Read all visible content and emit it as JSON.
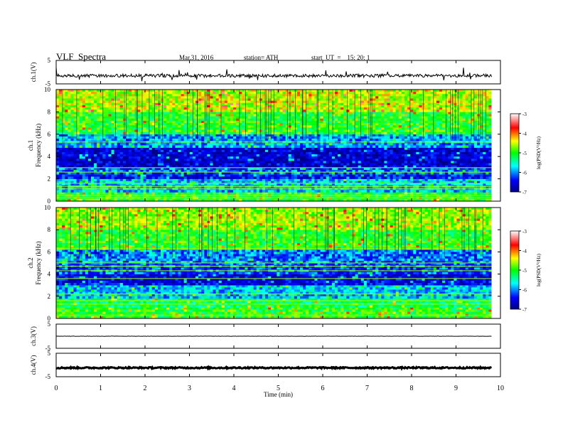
{
  "header": {
    "title": "VLF  Spectra",
    "date": "Mar.31, 2016",
    "station": "station= ATH",
    "start": "start  UT  =    15: 20: 1"
  },
  "chart_data": {
    "type": "spectrogram",
    "xlabel": "Time  (min)",
    "xlim": [
      0,
      10
    ],
    "xticks": [
      "0",
      "1",
      "2",
      "3",
      "4",
      "5",
      "6",
      "7",
      "8",
      "9",
      "10"
    ],
    "data_end_min": 9.8,
    "panels": [
      {
        "id": "ch1-waveform",
        "kind": "waveform",
        "ylabel": "ch.1(V)",
        "ylim": [
          -5,
          5
        ],
        "yticks": [
          "5",
          "-5"
        ],
        "baseline": -1.5,
        "noise": 0.7
      },
      {
        "id": "ch1-spec",
        "kind": "spectrogram",
        "ylabel": [
          "ch.1",
          "Frequency  (kHz)"
        ],
        "ylim": [
          0,
          10
        ],
        "yticks": [
          "0",
          "2",
          "4",
          "6",
          "8",
          "10"
        ],
        "bands": [
          {
            "f0": 0.0,
            "f1": 0.8,
            "level": -5.0
          },
          {
            "f0": 0.8,
            "f1": 2.0,
            "level": -5.8
          },
          {
            "f0": 2.0,
            "f1": 2.4,
            "level": -6.4
          },
          {
            "f0": 2.4,
            "f1": 3.0,
            "level": -6.1
          },
          {
            "f0": 3.0,
            "f1": 4.8,
            "level": -6.6
          },
          {
            "f0": 4.8,
            "f1": 6.0,
            "level": -5.9
          },
          {
            "f0": 6.0,
            "f1": 8.0,
            "level": -5.0
          },
          {
            "f0": 8.0,
            "f1": 10.0,
            "level": -4.5
          }
        ],
        "lines_khz": [
          0.3,
          0.5,
          1.1,
          1.3,
          1.6,
          2.6,
          3.0,
          5.3
        ]
      },
      {
        "id": "ch2-spec",
        "kind": "spectrogram",
        "ylabel": [
          "ch.2",
          "Frequency  (kHz)"
        ],
        "ylim": [
          0,
          10
        ],
        "yticks": [
          "0",
          "2",
          "4",
          "6",
          "8",
          "10"
        ],
        "bands": [
          {
            "f0": 0.0,
            "f1": 1.0,
            "level": -5.0
          },
          {
            "f0": 1.0,
            "f1": 1.8,
            "level": -5.2
          },
          {
            "f0": 1.8,
            "f1": 3.0,
            "level": -5.8
          },
          {
            "f0": 3.0,
            "f1": 4.0,
            "level": -6.5
          },
          {
            "f0": 4.0,
            "f1": 5.0,
            "level": -6.2
          },
          {
            "f0": 5.0,
            "f1": 6.2,
            "level": -6.0
          },
          {
            "f0": 6.2,
            "f1": 8.0,
            "level": -5.0
          },
          {
            "f0": 8.0,
            "f1": 10.0,
            "level": -4.6
          }
        ],
        "lines_khz": [
          0.3,
          1.3,
          1.6,
          2.2,
          3.6,
          4.3,
          4.7,
          5.0,
          6.3
        ]
      },
      {
        "id": "ch3-waveform",
        "kind": "waveform",
        "ylabel": "ch.3(V)",
        "ylim": [
          -5,
          5
        ],
        "yticks": [
          "5",
          "-5"
        ],
        "baseline": 0.0,
        "noise": 0.05
      },
      {
        "id": "ch4-waveform",
        "kind": "waveform",
        "ylabel": "ch.4(V)",
        "ylim": [
          -5,
          5
        ],
        "yticks": [
          "5",
          "-5"
        ],
        "baseline": -1.2,
        "noise": 0.3
      }
    ],
    "colorbar": {
      "label": "log(PSD(V²/Hz)",
      "range": [
        -7,
        -3
      ],
      "ticks": [
        "-3",
        "-4",
        "-5",
        "-6",
        "-7"
      ],
      "colors": [
        "#000080",
        "#0000ff",
        "#00ffff",
        "#00ff00",
        "#ffff00",
        "#ff0000",
        "#ffffff"
      ]
    }
  }
}
